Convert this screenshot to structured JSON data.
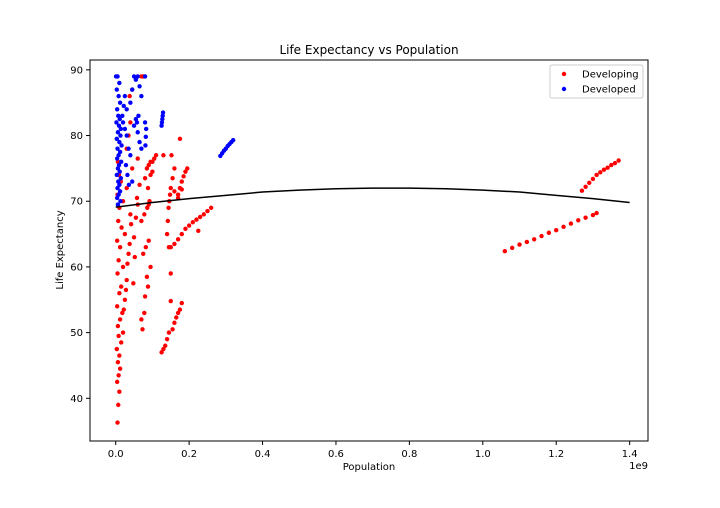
{
  "chart_data": {
    "type": "scatter",
    "title": "Life Expectancy vs Population",
    "xlabel": "Population",
    "ylabel": "Life Expectancy",
    "x_offset_label": "1e9",
    "xlim": [
      -0.07,
      1.45
    ],
    "ylim": [
      33.5,
      91.5
    ],
    "xticks": [
      0.0,
      0.2,
      0.4,
      0.6,
      0.8,
      1.0,
      1.2,
      1.4
    ],
    "xtick_labels": [
      "0.0",
      "0.2",
      "0.4",
      "0.6",
      "0.8",
      "1.0",
      "1.2",
      "1.4"
    ],
    "yticks": [
      40,
      50,
      60,
      70,
      80,
      90
    ],
    "ytick_labels": [
      "40",
      "50",
      "60",
      "70",
      "80",
      "90"
    ],
    "grid": false,
    "legend_position": "top-right",
    "series": [
      {
        "name": "Developing",
        "color": "#ff0000",
        "marker": "circle",
        "points": [
          [
            0.005,
            36.3
          ],
          [
            0.007,
            39.0
          ],
          [
            0.01,
            41.0
          ],
          [
            0.004,
            42.5
          ],
          [
            0.008,
            43.5
          ],
          [
            0.012,
            44.5
          ],
          [
            0.006,
            45.5
          ],
          [
            0.01,
            46.5
          ],
          [
            0.003,
            47.5
          ],
          [
            0.015,
            48.5
          ],
          [
            0.008,
            49.5
          ],
          [
            0.02,
            50.0
          ],
          [
            0.006,
            51.0
          ],
          [
            0.012,
            52.0
          ],
          [
            0.018,
            53.0
          ],
          [
            0.004,
            54.0
          ],
          [
            0.025,
            55.0
          ],
          [
            0.01,
            56.0
          ],
          [
            0.015,
            57.0
          ],
          [
            0.03,
            58.0
          ],
          [
            0.005,
            59.0
          ],
          [
            0.02,
            60.0
          ],
          [
            0.008,
            61.0
          ],
          [
            0.035,
            62.0
          ],
          [
            0.012,
            63.0
          ],
          [
            0.004,
            64.0
          ],
          [
            0.025,
            65.0
          ],
          [
            0.016,
            66.0
          ],
          [
            0.007,
            67.0
          ],
          [
            0.04,
            68.0
          ],
          [
            0.01,
            69.0
          ],
          [
            0.02,
            70.0
          ],
          [
            0.005,
            71.0
          ],
          [
            0.03,
            72.0
          ],
          [
            0.014,
            73.0
          ],
          [
            0.009,
            74.0
          ],
          [
            0.045,
            75.0
          ],
          [
            0.006,
            76.0
          ],
          [
            0.022,
            53.5
          ],
          [
            0.028,
            56.5
          ],
          [
            0.032,
            60.5
          ],
          [
            0.038,
            63.5
          ],
          [
            0.042,
            66.5
          ],
          [
            0.048,
            57.5
          ],
          [
            0.052,
            61.5
          ],
          [
            0.05,
            64.5
          ],
          [
            0.055,
            67.5
          ],
          [
            0.06,
            69.5
          ],
          [
            0.065,
            72.5
          ],
          [
            0.058,
            70.5
          ],
          [
            0.03,
            78.0
          ],
          [
            0.035,
            80.0
          ],
          [
            0.04,
            82.0
          ],
          [
            0.038,
            86.0
          ],
          [
            0.045,
            87.0
          ],
          [
            0.07,
            89.0
          ],
          [
            0.075,
            89.0
          ],
          [
            0.06,
            76.5
          ],
          [
            0.08,
            73.5
          ],
          [
            0.085,
            75.0
          ],
          [
            0.09,
            75.5
          ],
          [
            0.095,
            76.0
          ],
          [
            0.1,
            76.0
          ],
          [
            0.105,
            76.5
          ],
          [
            0.11,
            77.0
          ],
          [
            0.07,
            67.0
          ],
          [
            0.078,
            68.0
          ],
          [
            0.086,
            69.0
          ],
          [
            0.09,
            69.5
          ],
          [
            0.075,
            62.0
          ],
          [
            0.082,
            63.0
          ],
          [
            0.09,
            64.0
          ],
          [
            0.095,
            60.0
          ],
          [
            0.085,
            58.5
          ],
          [
            0.08,
            55.5
          ],
          [
            0.088,
            57.0
          ],
          [
            0.07,
            52.0
          ],
          [
            0.078,
            53.0
          ],
          [
            0.073,
            50.5
          ],
          [
            0.095,
            74.0
          ],
          [
            0.088,
            72.0
          ],
          [
            0.1,
            74.5
          ],
          [
            0.092,
            70.0
          ],
          [
            0.125,
            47.0
          ],
          [
            0.13,
            47.5
          ],
          [
            0.135,
            48.0
          ],
          [
            0.14,
            49.0
          ],
          [
            0.145,
            50.0
          ],
          [
            0.15,
            54.8
          ],
          [
            0.15,
            59.0
          ],
          [
            0.145,
            63.0
          ],
          [
            0.14,
            65.0
          ],
          [
            0.142,
            67.0
          ],
          [
            0.144,
            69.0
          ],
          [
            0.146,
            70.0
          ],
          [
            0.148,
            71.0
          ],
          [
            0.15,
            72.0
          ],
          [
            0.155,
            73.5
          ],
          [
            0.16,
            75.0
          ],
          [
            0.152,
            77.0
          ],
          [
            0.13,
            77.0
          ],
          [
            0.15,
            63.0
          ],
          [
            0.16,
            63.5
          ],
          [
            0.17,
            64.2
          ],
          [
            0.18,
            65.0
          ],
          [
            0.19,
            65.8
          ],
          [
            0.2,
            66.3
          ],
          [
            0.21,
            66.8
          ],
          [
            0.22,
            67.2
          ],
          [
            0.23,
            67.6
          ],
          [
            0.24,
            68.0
          ],
          [
            0.25,
            68.5
          ],
          [
            0.26,
            69.0
          ],
          [
            0.225,
            65.5
          ],
          [
            0.155,
            50.5
          ],
          [
            0.16,
            51.5
          ],
          [
            0.165,
            52.3
          ],
          [
            0.17,
            53.0
          ],
          [
            0.175,
            53.5
          ],
          [
            0.18,
            54.5
          ],
          [
            0.17,
            71.0
          ],
          [
            0.175,
            72.0
          ],
          [
            0.18,
            73.0
          ],
          [
            0.185,
            73.8
          ],
          [
            0.19,
            74.5
          ],
          [
            0.195,
            75.0
          ],
          [
            0.18,
            71.8
          ],
          [
            0.175,
            79.5
          ],
          [
            0.16,
            71.5
          ],
          [
            0.17,
            70.5
          ],
          [
            1.06,
            62.4
          ],
          [
            1.08,
            62.9
          ],
          [
            1.1,
            63.4
          ],
          [
            1.12,
            63.8
          ],
          [
            1.14,
            64.2
          ],
          [
            1.16,
            64.7
          ],
          [
            1.18,
            65.2
          ],
          [
            1.2,
            65.6
          ],
          [
            1.22,
            66.1
          ],
          [
            1.24,
            66.6
          ],
          [
            1.26,
            67.1
          ],
          [
            1.28,
            67.5
          ],
          [
            1.3,
            67.9
          ],
          [
            1.31,
            68.2
          ],
          [
            1.27,
            71.6
          ],
          [
            1.28,
            72.2
          ],
          [
            1.29,
            72.8
          ],
          [
            1.3,
            73.4
          ],
          [
            1.31,
            74.0
          ],
          [
            1.32,
            74.4
          ],
          [
            1.33,
            74.8
          ],
          [
            1.34,
            75.1
          ],
          [
            1.35,
            75.5
          ],
          [
            1.36,
            75.8
          ],
          [
            1.37,
            76.2
          ]
        ]
      },
      {
        "name": "Developed",
        "color": "#0000ff",
        "marker": "circle",
        "points": [
          [
            0.001,
            89.0
          ],
          [
            0.005,
            89.0
          ],
          [
            0.01,
            88.0
          ],
          [
            0.003,
            87.0
          ],
          [
            0.008,
            86.0
          ],
          [
            0.012,
            85.0
          ],
          [
            0.004,
            84.0
          ],
          [
            0.007,
            83.0
          ],
          [
            0.011,
            82.5
          ],
          [
            0.002,
            82.0
          ],
          [
            0.009,
            81.5
          ],
          [
            0.014,
            81.0
          ],
          [
            0.006,
            80.5
          ],
          [
            0.013,
            80.0
          ],
          [
            0.003,
            79.5
          ],
          [
            0.01,
            79.0
          ],
          [
            0.016,
            78.5
          ],
          [
            0.005,
            78.0
          ],
          [
            0.012,
            77.5
          ],
          [
            0.008,
            77.0
          ],
          [
            0.004,
            76.5
          ],
          [
            0.015,
            76.0
          ],
          [
            0.009,
            75.5
          ],
          [
            0.006,
            75.0
          ],
          [
            0.011,
            74.5
          ],
          [
            0.003,
            74.0
          ],
          [
            0.014,
            73.5
          ],
          [
            0.007,
            73.0
          ],
          [
            0.01,
            72.5
          ],
          [
            0.005,
            72.0
          ],
          [
            0.012,
            71.5
          ],
          [
            0.008,
            71.0
          ],
          [
            0.004,
            70.5
          ],
          [
            0.013,
            70.0
          ],
          [
            0.006,
            69.5
          ],
          [
            0.02,
            82.0
          ],
          [
            0.025,
            81.0
          ],
          [
            0.03,
            80.0
          ],
          [
            0.035,
            78.0
          ],
          [
            0.04,
            77.0
          ],
          [
            0.028,
            75.5
          ],
          [
            0.032,
            74.0
          ],
          [
            0.036,
            72.5
          ],
          [
            0.045,
            73.0
          ],
          [
            0.05,
            81.5
          ],
          [
            0.055,
            82.5
          ],
          [
            0.06,
            80.5
          ],
          [
            0.065,
            79.0
          ],
          [
            0.07,
            78.0
          ],
          [
            0.058,
            82.0
          ],
          [
            0.062,
            83.0
          ],
          [
            0.08,
            82.0
          ],
          [
            0.083,
            81.0
          ],
          [
            0.082,
            79.8
          ],
          [
            0.081,
            78.5
          ],
          [
            0.05,
            89.0
          ],
          [
            0.06,
            89.0
          ],
          [
            0.08,
            89.0
          ],
          [
            0.065,
            87.5
          ],
          [
            0.07,
            86.0
          ],
          [
            0.04,
            85.0
          ],
          [
            0.045,
            87.0
          ],
          [
            0.055,
            88.5
          ],
          [
            0.025,
            86.0
          ],
          [
            0.03,
            84.0
          ],
          [
            0.018,
            83.0
          ],
          [
            0.022,
            84.5
          ],
          [
            0.125,
            81.5
          ],
          [
            0.126,
            82.0
          ],
          [
            0.127,
            82.5
          ],
          [
            0.128,
            83.0
          ],
          [
            0.129,
            83.5
          ],
          [
            0.285,
            76.9
          ],
          [
            0.29,
            77.3
          ],
          [
            0.295,
            77.7
          ],
          [
            0.3,
            78.0
          ],
          [
            0.305,
            78.4
          ],
          [
            0.31,
            78.7
          ],
          [
            0.315,
            79.0
          ],
          [
            0.32,
            79.3
          ]
        ]
      }
    ],
    "trend_line": {
      "color": "#000000",
      "x": [
        0.0,
        0.1,
        0.2,
        0.3,
        0.4,
        0.5,
        0.6,
        0.7,
        0.8,
        0.9,
        1.0,
        1.1,
        1.2,
        1.3,
        1.4
      ],
      "y": [
        69.1,
        69.8,
        70.4,
        70.9,
        71.4,
        71.7,
        71.9,
        72.0,
        72.0,
        71.9,
        71.7,
        71.4,
        70.9,
        70.4,
        69.8
      ]
    }
  }
}
